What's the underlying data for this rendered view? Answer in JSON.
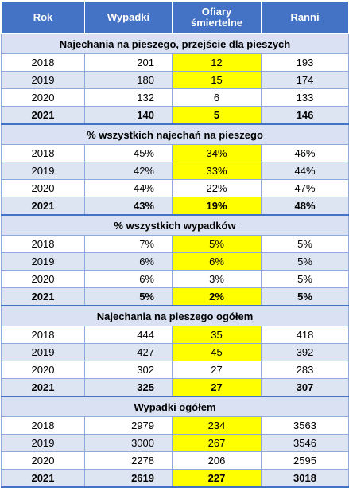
{
  "header": {
    "rok": "Rok",
    "wypadki": "Wypadki",
    "ofiary_line1": "Ofiary",
    "ofiary_line2": "śmiertelne",
    "ranni": "Ranni"
  },
  "colors": {
    "header_bg": "#4472c4",
    "section_bg": "#d9e1f2",
    "alt_row_bg": "#dde5f3",
    "highlight": "#ffff00"
  },
  "sections": [
    {
      "title": "Najechania na pieszego, przejście dla pieszych",
      "rows": [
        {
          "rok": "2018",
          "wypadki": "201",
          "ofiary": "12",
          "ranni": "193",
          "highlight": true
        },
        {
          "rok": "2019",
          "wypadki": "180",
          "ofiary": "15",
          "ranni": "174",
          "highlight": true
        },
        {
          "rok": "2020",
          "wypadki": "132",
          "ofiary": "6",
          "ranni": "133",
          "highlight": false
        },
        {
          "rok": "2021",
          "wypadki": "140",
          "ofiary": "5",
          "ranni": "146",
          "highlight": true
        }
      ]
    },
    {
      "title": "% wszystkich najechań na pieszego",
      "rows": [
        {
          "rok": "2018",
          "wypadki": "45%",
          "ofiary": "34%",
          "ranni": "46%",
          "highlight": true
        },
        {
          "rok": "2019",
          "wypadki": "42%",
          "ofiary": "33%",
          "ranni": "44%",
          "highlight": true
        },
        {
          "rok": "2020",
          "wypadki": "44%",
          "ofiary": "22%",
          "ranni": "47%",
          "highlight": false
        },
        {
          "rok": "2021",
          "wypadki": "43%",
          "ofiary": "19%",
          "ranni": "48%",
          "highlight": true
        }
      ]
    },
    {
      "title": "% wszystkich wypadków",
      "rows": [
        {
          "rok": "2018",
          "wypadki": "7%",
          "ofiary": "5%",
          "ranni": "5%",
          "highlight": true
        },
        {
          "rok": "2019",
          "wypadki": "6%",
          "ofiary": "6%",
          "ranni": "5%",
          "highlight": true
        },
        {
          "rok": "2020",
          "wypadki": "6%",
          "ofiary": "3%",
          "ranni": "5%",
          "highlight": false
        },
        {
          "rok": "2021",
          "wypadki": "5%",
          "ofiary": "2%",
          "ranni": "5%",
          "highlight": true
        }
      ]
    },
    {
      "title": "Najechania na pieszego ogółem",
      "rows": [
        {
          "rok": "2018",
          "wypadki": "444",
          "ofiary": "35",
          "ranni": "418",
          "highlight": true
        },
        {
          "rok": "2019",
          "wypadki": "427",
          "ofiary": "45",
          "ranni": "392",
          "highlight": true
        },
        {
          "rok": "2020",
          "wypadki": "302",
          "ofiary": "27",
          "ranni": "283",
          "highlight": false
        },
        {
          "rok": "2021",
          "wypadki": "325",
          "ofiary": "27",
          "ranni": "307",
          "highlight": true
        }
      ]
    },
    {
      "title": "Wypadki ogółem",
      "rows": [
        {
          "rok": "2018",
          "wypadki": "2979",
          "ofiary": "234",
          "ranni": "3563",
          "highlight": true
        },
        {
          "rok": "2019",
          "wypadki": "3000",
          "ofiary": "267",
          "ranni": "3546",
          "highlight": true
        },
        {
          "rok": "2020",
          "wypadki": "2278",
          "ofiary": "206",
          "ranni": "2595",
          "highlight": false
        },
        {
          "rok": "2021",
          "wypadki": "2619",
          "ofiary": "227",
          "ranni": "3018",
          "highlight": true
        }
      ]
    }
  ]
}
